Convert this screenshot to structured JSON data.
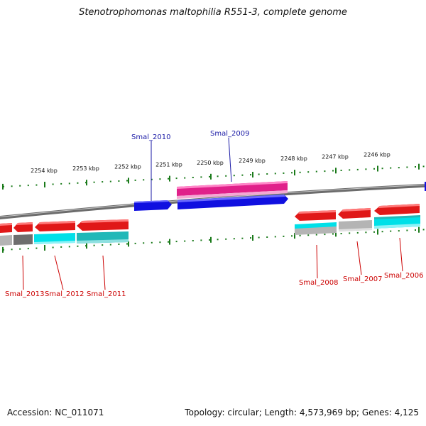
{
  "title": "Stenotrophomonas maltophilia R551-3, complete genome",
  "footer": {
    "accession": "Accession: NC_011071",
    "info": "Topology: circular; Length: 4,573,969 bp; Genes: 4,125"
  },
  "colors": {
    "forward_label": "#1a1aa6",
    "reverse_label": "#cc0000",
    "tick": "#1a7a1a",
    "backbone": "#808080",
    "gene_red": "#e01818",
    "gene_blue": "#1010e0",
    "gene_pink": "#e0208a",
    "cds_cyan": "#00e0e8",
    "cds_grey": "#b4b4b4",
    "cds_dark_grey": "#6e6e6e",
    "cds_teal": "#20b8b8"
  },
  "ruler": {
    "labels": [
      "2254 kbp",
      "2253 kbp",
      "2252 kbp",
      "2251 kbp",
      "2250 kbp",
      "2249 kbp",
      "2248 kbp",
      "2247 kbp",
      "2246 kbp"
    ]
  },
  "forward_labels": [
    "Smal_2010",
    "Smal_2009"
  ],
  "reverse_labels": [
    "Smal_2013",
    "Smal_2012",
    "Smal_2011",
    "Smal_2008",
    "Smal_2007",
    "Smal_2006"
  ]
}
